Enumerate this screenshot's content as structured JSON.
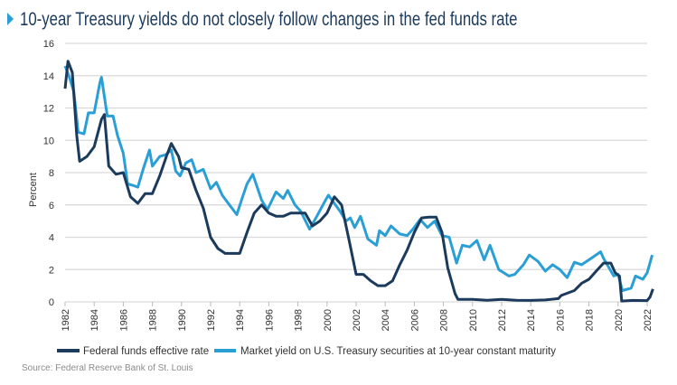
{
  "chart_data": {
    "type": "line",
    "title": "10-year Treasury yields do not closely follow changes in the fed funds rate",
    "xlabel": "",
    "ylabel": "Percent",
    "xlim": [
      1982,
      2022.4
    ],
    "ylim": [
      0,
      16
    ],
    "grid": true,
    "legend_position": "bottom",
    "yticks": [
      "0",
      "2",
      "4",
      "6",
      "8",
      "10",
      "12",
      "14",
      "16"
    ],
    "xticks": [
      "1982",
      "1984",
      "1986",
      "1988",
      "1990",
      "1992",
      "1994",
      "1996",
      "1998",
      "2000",
      "2002",
      "2004",
      "2006",
      "2008",
      "2010",
      "2012",
      "2014",
      "2016",
      "2018",
      "2020",
      "2022"
    ],
    "source": "Source: Federal Reserve Bank of St. Louis",
    "colors": {
      "fed_funds": "#1b3a5c",
      "treasury_10y": "#2a9fd6",
      "accent": "#2a9fd6"
    },
    "series": [
      {
        "name": "Federal funds effective rate",
        "x": [
          1982.0,
          1982.2,
          1982.5,
          1982.8,
          1983.0,
          1983.5,
          1984.0,
          1984.5,
          1984.7,
          1985.0,
          1985.5,
          1986.0,
          1986.5,
          1987.0,
          1987.5,
          1988.0,
          1988.5,
          1989.0,
          1989.3,
          1989.8,
          1990.0,
          1990.5,
          1991.0,
          1991.5,
          1992.0,
          1992.5,
          1993.0,
          1993.5,
          1994.0,
          1994.5,
          1995.0,
          1995.5,
          1996.0,
          1996.5,
          1997.0,
          1997.5,
          1998.0,
          1998.5,
          1999.0,
          1999.5,
          2000.0,
          2000.5,
          2001.0,
          2001.5,
          2002.0,
          2002.5,
          2003.0,
          2003.5,
          2004.0,
          2004.5,
          2005.0,
          2005.5,
          2006.0,
          2006.5,
          2007.0,
          2007.5,
          2007.9,
          2008.3,
          2008.8,
          2009.0,
          2010.0,
          2011.0,
          2012.0,
          2013.0,
          2014.0,
          2015.0,
          2015.9,
          2016.1,
          2017.0,
          2017.5,
          2018.0,
          2018.5,
          2019.0,
          2019.5,
          2019.8,
          2020.1,
          2020.25,
          2021.0,
          2022.0,
          2022.2,
          2022.4
        ],
        "values": [
          13.2,
          14.9,
          14.2,
          10.3,
          8.7,
          9.0,
          9.6,
          11.3,
          11.6,
          8.4,
          7.9,
          8.0,
          6.5,
          6.1,
          6.7,
          6.7,
          7.8,
          9.1,
          9.8,
          9.0,
          8.3,
          8.2,
          6.9,
          5.8,
          4.0,
          3.3,
          3.0,
          3.0,
          3.0,
          4.3,
          5.5,
          6.0,
          5.5,
          5.3,
          5.3,
          5.5,
          5.5,
          5.5,
          4.7,
          5.0,
          5.5,
          6.5,
          6.0,
          3.9,
          1.7,
          1.7,
          1.3,
          1.0,
          1.0,
          1.3,
          2.3,
          3.2,
          4.3,
          5.2,
          5.25,
          5.25,
          4.3,
          2.1,
          0.5,
          0.15,
          0.15,
          0.1,
          0.15,
          0.1,
          0.09,
          0.12,
          0.2,
          0.4,
          0.7,
          1.15,
          1.4,
          1.9,
          2.4,
          2.4,
          1.8,
          1.6,
          0.05,
          0.09,
          0.08,
          0.3,
          0.8
        ]
      },
      {
        "name": "Market yield on U.S. Treasury securities at 10-year constant maturity",
        "x": [
          1982.0,
          1982.3,
          1982.6,
          1982.9,
          1983.3,
          1983.6,
          1984.0,
          1984.4,
          1984.5,
          1984.9,
          1985.3,
          1985.6,
          1986.0,
          1986.3,
          1986.7,
          1987.0,
          1987.4,
          1987.8,
          1988.0,
          1988.5,
          1988.9,
          1989.3,
          1989.6,
          1989.9,
          1990.3,
          1990.7,
          1991.0,
          1991.5,
          1992.0,
          1992.4,
          1992.8,
          1993.3,
          1993.8,
          1994.2,
          1994.5,
          1994.9,
          1995.5,
          1995.9,
          1996.5,
          1997.0,
          1997.3,
          1997.8,
          1998.2,
          1998.8,
          1999.3,
          1999.9,
          2000.1,
          2000.5,
          2000.9,
          2001.3,
          2001.6,
          2001.9,
          2002.3,
          2002.8,
          2003.4,
          2003.6,
          2004.0,
          2004.4,
          2005.0,
          2005.5,
          2005.9,
          2006.4,
          2006.9,
          2007.4,
          2007.9,
          2008.4,
          2008.9,
          2009.3,
          2009.8,
          2010.3,
          2010.8,
          2011.2,
          2011.8,
          2012.5,
          2012.9,
          2013.5,
          2013.9,
          2014.5,
          2015.0,
          2015.5,
          2016.0,
          2016.5,
          2017.0,
          2017.5,
          2018.0,
          2018.8,
          2019.0,
          2019.7,
          2020.0,
          2020.3,
          2020.9,
          2021.2,
          2021.7,
          2022.0,
          2022.35
        ],
        "values": [
          14.6,
          13.9,
          13.0,
          10.5,
          10.4,
          11.7,
          11.7,
          13.6,
          13.9,
          11.5,
          11.5,
          10.3,
          9.2,
          7.3,
          7.2,
          7.1,
          8.3,
          9.4,
          8.4,
          9.0,
          9.1,
          9.4,
          8.1,
          7.8,
          8.6,
          8.8,
          8.0,
          8.2,
          7.0,
          7.4,
          6.6,
          6.0,
          5.4,
          6.5,
          7.3,
          7.9,
          6.3,
          5.7,
          6.8,
          6.4,
          6.9,
          6.0,
          5.6,
          4.5,
          5.3,
          6.3,
          6.6,
          6.1,
          5.6,
          5.0,
          5.2,
          4.6,
          5.3,
          3.9,
          3.5,
          4.4,
          4.1,
          4.7,
          4.2,
          4.1,
          4.5,
          5.1,
          4.6,
          5.0,
          4.1,
          4.0,
          2.4,
          3.5,
          3.4,
          3.8,
          2.6,
          3.5,
          2.0,
          1.6,
          1.7,
          2.3,
          2.9,
          2.5,
          1.9,
          2.3,
          2.0,
          1.5,
          2.45,
          2.3,
          2.6,
          3.1,
          2.7,
          1.6,
          1.7,
          0.7,
          0.85,
          1.6,
          1.4,
          1.8,
          2.9
        ]
      }
    ]
  }
}
